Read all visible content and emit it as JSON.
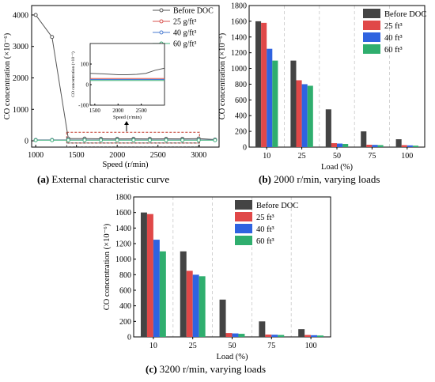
{
  "captions": {
    "a_tag": "(a)",
    "a_text": "External characteristic curve",
    "b_tag": "(b)",
    "b_text": "2000 r/min, varying loads",
    "c_tag": "(c)",
    "c_text": "3200 r/min, varying loads"
  },
  "chart_data": [
    {
      "id": "a",
      "type": "line",
      "ylabel": "CO concentration (×10⁻⁶)",
      "xlabel": "Speed (r/min)",
      "xlim": [
        950,
        3250
      ],
      "ylim": [
        -200,
        4300
      ],
      "xticks": [
        "1000",
        "1500",
        "2000",
        "2500",
        "3000"
      ],
      "yticks": [
        "0",
        "1000",
        "2000",
        "3000",
        "4000"
      ],
      "x": [
        1000,
        1200,
        1400,
        1600,
        1800,
        2000,
        2200,
        2400,
        2600,
        2800,
        3000,
        3200
      ],
      "series": [
        {
          "name": "Before DOC",
          "color": "#555555",
          "marker": "circle",
          "values": [
            4000,
            3300,
            70,
            70,
            65,
            62,
            63,
            62,
            63,
            62,
            70,
            40
          ]
        },
        {
          "name": "25 g/ft³",
          "color": "#d9534f",
          "marker": "circle",
          "values": [
            30,
            30,
            30,
            30,
            30,
            30,
            30,
            30,
            30,
            30,
            30,
            30
          ]
        },
        {
          "name": "40 g/ft³",
          "color": "#4a7bd0",
          "marker": "circle",
          "values": [
            25,
            25,
            25,
            25,
            25,
            25,
            25,
            25,
            25,
            25,
            25,
            25
          ]
        },
        {
          "name": "60 g/ft³",
          "color": "#3fb07a",
          "marker": "circle",
          "values": [
            20,
            20,
            20,
            20,
            20,
            20,
            20,
            20,
            20,
            20,
            20,
            20
          ]
        }
      ],
      "inset": {
        "ylabel": "CO concentration (×10⁻⁶)",
        "xlabel": "Speed (r/min)",
        "xlim": [
          1400,
          3000
        ],
        "ylim": [
          -100,
          200
        ],
        "xticks": [
          "1500",
          "2000",
          "2500"
        ],
        "yticks": [
          "-100",
          "0",
          "100"
        ],
        "x": [
          1400,
          1600,
          1800,
          2000,
          2200,
          2400,
          2600,
          2800,
          3000
        ],
        "before": [
          55,
          53,
          51,
          48,
          48,
          50,
          55,
          70,
          80
        ],
        "after": [
          30,
          25,
          20
        ]
      }
    },
    {
      "id": "b",
      "type": "bar",
      "ylabel": "CO concentration (×10⁻⁶)",
      "xlabel": "Load (%)",
      "ylim": [
        0,
        1800
      ],
      "yticks": [
        "0",
        "200",
        "400",
        "600",
        "800",
        "1000",
        "1200",
        "1400",
        "1600",
        "1800"
      ],
      "categories": [
        "10",
        "25",
        "50",
        "75",
        "100"
      ],
      "series": [
        {
          "name": "Before DOC",
          "color": "#444444",
          "values": [
            1600,
            1100,
            480,
            200,
            100
          ]
        },
        {
          "name": "25 ft³",
          "color": "#e04848",
          "values": [
            1580,
            850,
            50,
            30,
            25
          ]
        },
        {
          "name": "40 ft³",
          "color": "#2f63e0",
          "values": [
            1250,
            800,
            45,
            28,
            22
          ]
        },
        {
          "name": "60 ft³",
          "color": "#2fae6e",
          "values": [
            1100,
            780,
            40,
            25,
            18
          ]
        }
      ]
    },
    {
      "id": "c",
      "type": "bar",
      "ylabel": "CO concentration (×10⁻⁶)",
      "xlabel": "Load (%)",
      "ylim": [
        0,
        1800
      ],
      "yticks": [
        "0",
        "200",
        "400",
        "600",
        "800",
        "1000",
        "1200",
        "1400",
        "1600",
        "1800"
      ],
      "categories": [
        "10",
        "25",
        "50",
        "75",
        "100"
      ],
      "series": [
        {
          "name": "Before DOC",
          "color": "#444444",
          "values": [
            1600,
            1100,
            480,
            200,
            100
          ]
        },
        {
          "name": "25 ft³",
          "color": "#e04848",
          "values": [
            1580,
            850,
            50,
            30,
            25
          ]
        },
        {
          "name": "40 ft³",
          "color": "#2f63e0",
          "values": [
            1250,
            800,
            45,
            28,
            22
          ]
        },
        {
          "name": "60 ft³",
          "color": "#2fae6e",
          "values": [
            1100,
            780,
            40,
            25,
            18
          ]
        }
      ]
    }
  ]
}
